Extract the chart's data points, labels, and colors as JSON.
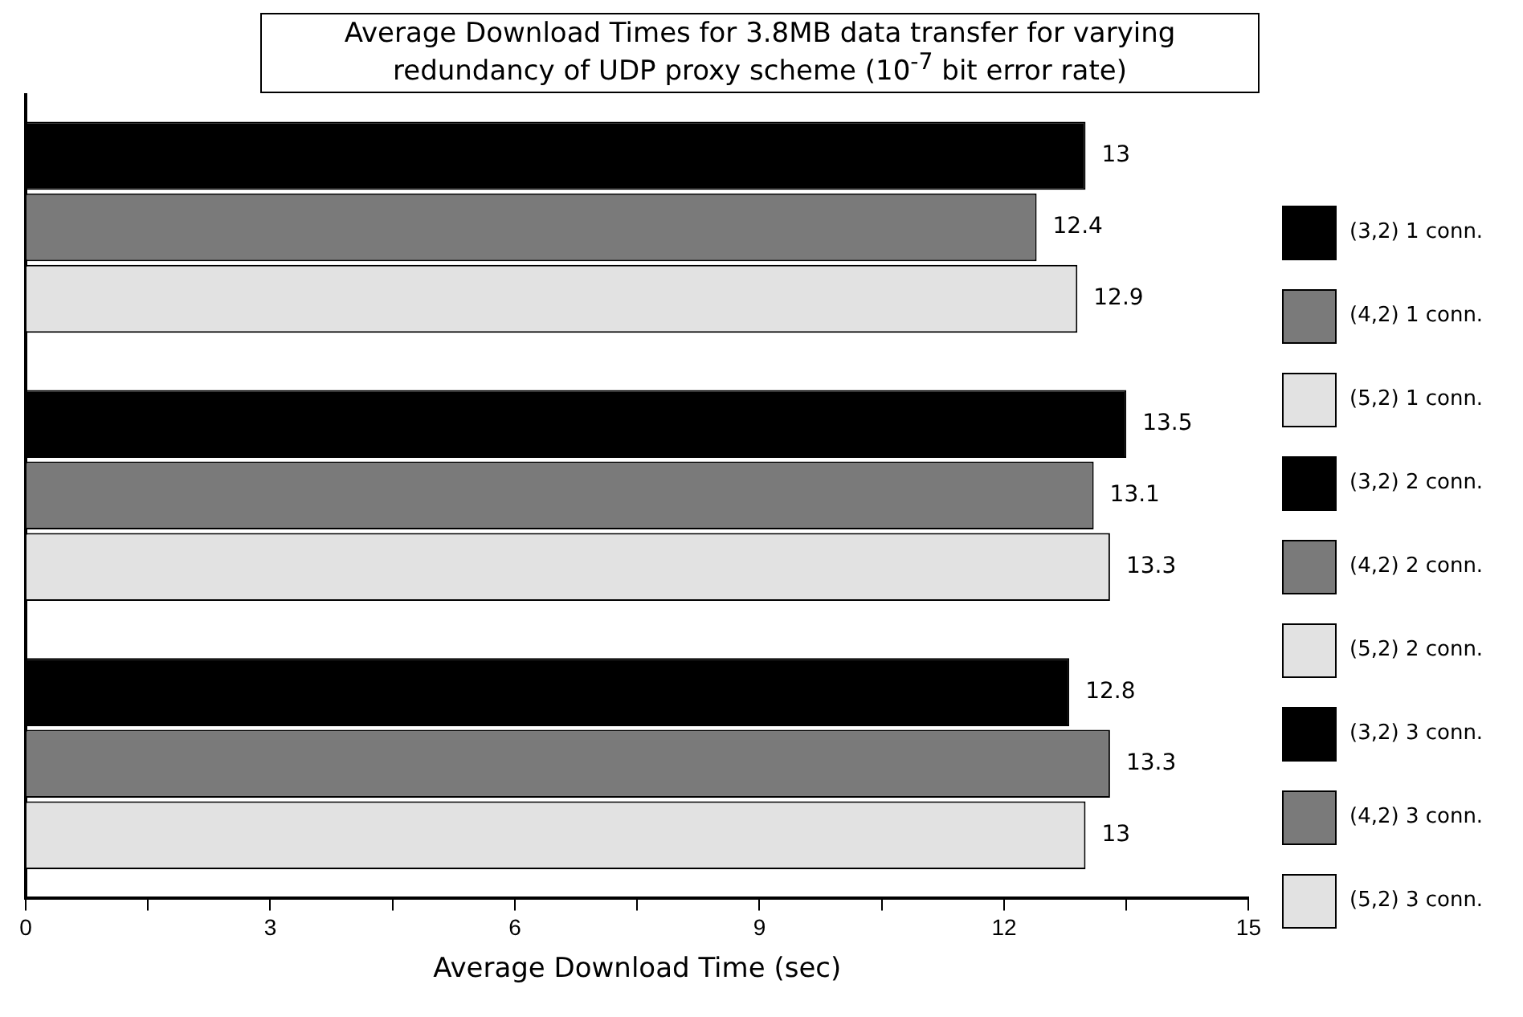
{
  "chart_data": {
    "type": "bar",
    "orientation": "horizontal",
    "title": "Average Download Times for 3.8MB data transfer for varying redundancy  of UDP proxy scheme (10$^{-7}$ bit error rate)",
    "xlabel": "Average Download Time (sec)",
    "categories": [
      null,
      null,
      null
    ],
    "series": [
      {
        "name": "(3,2) 1 conn.",
        "color": "#000000",
        "values": [
          13,
          null,
          null
        ]
      },
      {
        "name": "(4,2) 1 conn.",
        "color": "#7a7a7a",
        "values": [
          12.4,
          null,
          null
        ]
      },
      {
        "name": "(5,2) 1 conn.",
        "color": "#e2e2e2",
        "values": [
          12.9,
          null,
          null
        ]
      },
      {
        "name": "(3,2) 2 conn.",
        "color": "#000000",
        "values": [
          null,
          13.5,
          null
        ]
      },
      {
        "name": "(4,2) 2 conn.",
        "color": "#7a7a7a",
        "values": [
          null,
          13.1,
          null
        ]
      },
      {
        "name": "(5,2) 2 conn.",
        "color": "#e2e2e2",
        "values": [
          null,
          13.3,
          null
        ]
      },
      {
        "name": "(3,2) 3 conn.",
        "color": "#000000",
        "values": [
          null,
          null,
          12.8
        ]
      },
      {
        "name": "(4,2) 3 conn.",
        "color": "#7a7a7a",
        "values": [
          null,
          null,
          13.3
        ]
      },
      {
        "name": "(5,2) 3 conn.",
        "color": "#e2e2e2",
        "values": [
          null,
          null,
          13
        ]
      }
    ],
    "xlim": [
      0,
      15
    ],
    "xticks": [
      0,
      {
        "value": 1.5,
        "label": null
      },
      3,
      {
        "value": 4.5,
        "label": null
      },
      6,
      {
        "value": 7.5,
        "label": null
      },
      9,
      {
        "value": 10.5,
        "label": null
      },
      12,
      {
        "value": 13.5,
        "label": null
      },
      15
    ],
    "data_labels": true,
    "grid": false,
    "legend": "right"
  }
}
